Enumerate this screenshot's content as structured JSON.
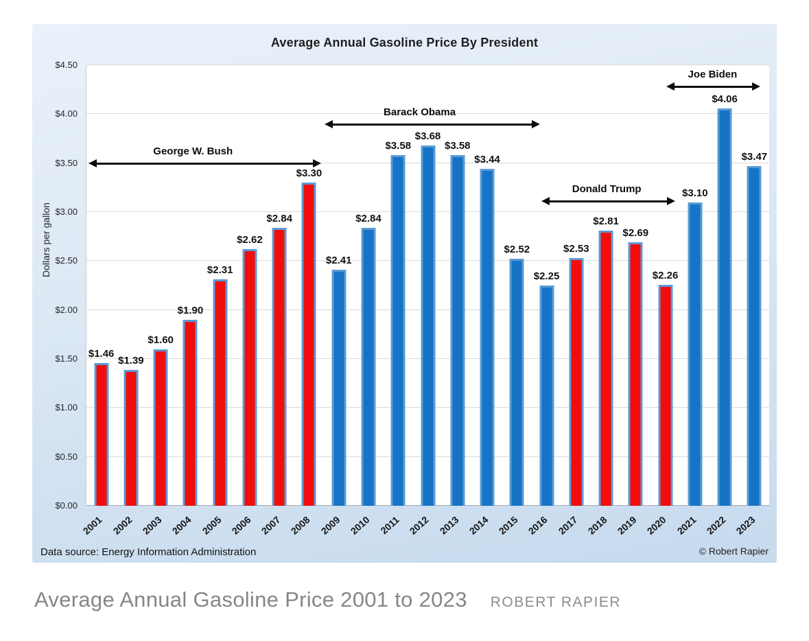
{
  "page": {
    "caption_title": "Average Annual Gasoline Price 2001 to 2023",
    "caption_byline": "ROBERT RAPIER"
  },
  "chart": {
    "title": "Average Annual Gasoline Price By President",
    "ylabel": "Dollars per gallon",
    "data_source": "Data source: Energy Information Administration",
    "copyright": "© Robert Rapier"
  },
  "chart_data": {
    "type": "bar",
    "title": "Average Annual Gasoline Price By President",
    "xlabel": "",
    "ylabel": "Dollars per gallon",
    "ylim": [
      0,
      4.5
    ],
    "ytick_step": 0.5,
    "currency_prefix": "$",
    "grid": true,
    "legend": false,
    "categories": [
      "2001",
      "2002",
      "2003",
      "2004",
      "2005",
      "2006",
      "2007",
      "2008",
      "2009",
      "2010",
      "2011",
      "2012",
      "2013",
      "2014",
      "2015",
      "2016",
      "2017",
      "2018",
      "2019",
      "2020",
      "2021",
      "2022",
      "2023"
    ],
    "values": [
      1.46,
      1.39,
      1.6,
      1.9,
      2.31,
      2.62,
      2.84,
      3.3,
      2.41,
      2.84,
      3.58,
      3.68,
      3.58,
      3.44,
      2.52,
      2.25,
      2.53,
      2.81,
      2.69,
      2.26,
      3.1,
      4.06,
      3.47
    ],
    "bar_party": [
      "R",
      "R",
      "R",
      "R",
      "R",
      "R",
      "R",
      "R",
      "D",
      "D",
      "D",
      "D",
      "D",
      "D",
      "D",
      "D",
      "R",
      "R",
      "R",
      "R",
      "D",
      "D",
      "D"
    ],
    "colors": {
      "republican": "#f20d0d",
      "democrat": "#1674c6",
      "bar_border": "#5b9bd5",
      "gridline": "#d9d9d9",
      "annotation": "#0d0d0d"
    },
    "annotations": [
      {
        "label": "George W. Bush",
        "x1_pct": 0.3,
        "x2_pct": 34.4,
        "y_value": 3.5,
        "label_x_pct": 15.6
      },
      {
        "label": "Barack Obama",
        "x1_pct": 34.9,
        "x2_pct": 66.4,
        "y_value": 3.9,
        "label_x_pct": 48.8
      },
      {
        "label": "Donald Trump",
        "x1_pct": 66.6,
        "x2_pct": 86.2,
        "y_value": 3.11,
        "label_x_pct": 76.2
      },
      {
        "label": "Joe Biden",
        "x1_pct": 84.9,
        "x2_pct": 98.7,
        "y_value": 4.28,
        "label_x_pct": 91.7
      }
    ]
  }
}
